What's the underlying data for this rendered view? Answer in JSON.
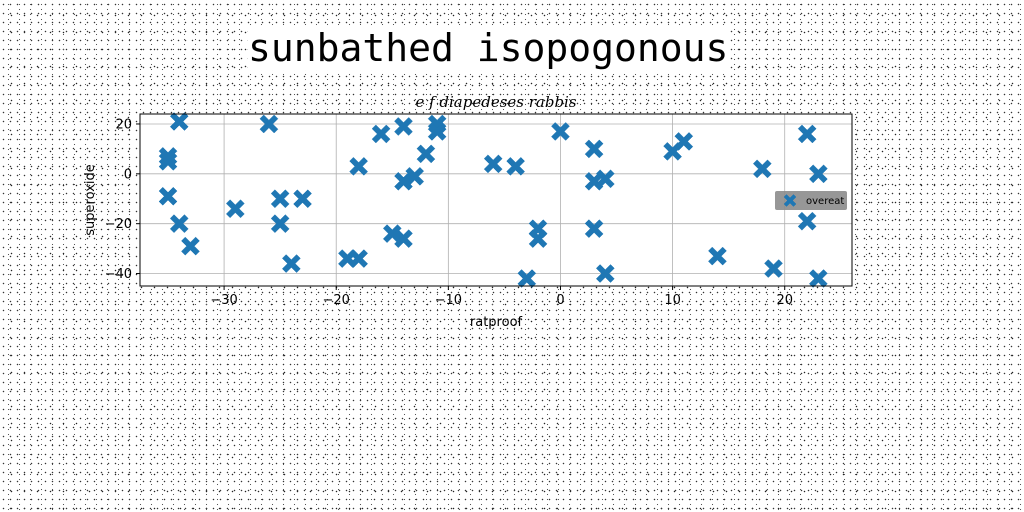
{
  "title": "sunbathed isopogonous",
  "chart_data": {
    "type": "scatter",
    "title": "e f diapedeses rabbis",
    "xlabel": "ratproof",
    "ylabel": "superoxide",
    "xlim": [
      -37.5,
      26
    ],
    "ylim": [
      -45,
      24
    ],
    "xticks": [
      -30,
      -20,
      -10,
      0,
      10,
      20
    ],
    "yticks": [
      -40,
      -20,
      0,
      20
    ],
    "grid": true,
    "legend_position": "right",
    "colors": {
      "series": "#1f77b4",
      "legend_bg": "#8c8c8c"
    },
    "series": [
      {
        "name": "overeat",
        "marker": "X",
        "points": [
          [
            -35,
            7
          ],
          [
            -35,
            5
          ],
          [
            -35,
            -9
          ],
          [
            -34,
            21
          ],
          [
            -34,
            -20
          ],
          [
            -33,
            -29
          ],
          [
            -29,
            -14
          ],
          [
            -26,
            20
          ],
          [
            -25,
            -10
          ],
          [
            -25,
            -20
          ],
          [
            -24,
            -36
          ],
          [
            -23,
            -10
          ],
          [
            -19,
            -34
          ],
          [
            -18,
            -34
          ],
          [
            -18,
            3
          ],
          [
            -16,
            16
          ],
          [
            -15,
            -24
          ],
          [
            -14,
            -26
          ],
          [
            -14,
            19
          ],
          [
            -14,
            -3
          ],
          [
            -13,
            -1
          ],
          [
            -12,
            8
          ],
          [
            -11,
            20
          ],
          [
            -11,
            17
          ],
          [
            -6,
            4
          ],
          [
            -4,
            3
          ],
          [
            -3,
            -42
          ],
          [
            -2,
            -22
          ],
          [
            -2,
            -26
          ],
          [
            0,
            17
          ],
          [
            3,
            10
          ],
          [
            3,
            -3
          ],
          [
            3,
            -22
          ],
          [
            4,
            -2
          ],
          [
            4,
            -40
          ],
          [
            10,
            9
          ],
          [
            11,
            13
          ],
          [
            14,
            -33
          ],
          [
            18,
            2
          ],
          [
            19,
            -38
          ],
          [
            22,
            16
          ],
          [
            22,
            -19
          ],
          [
            23,
            0
          ],
          [
            23,
            -42
          ]
        ]
      }
    ]
  }
}
